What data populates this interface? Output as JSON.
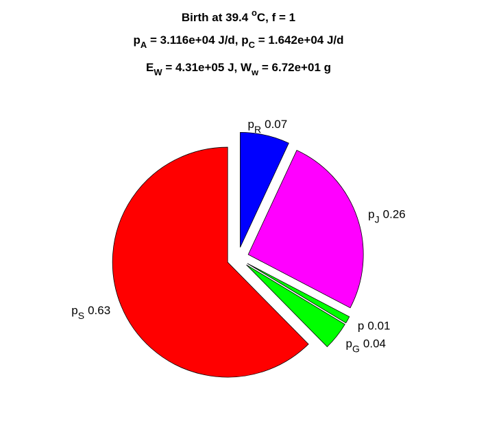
{
  "chart_data": {
    "type": "pie",
    "title_lines": [
      [
        {
          "text": "Birth at 39.4 "
        },
        {
          "sup": "o"
        },
        {
          "text": "C, f = 1"
        }
      ],
      [
        {
          "text": "p"
        },
        {
          "sub": "A"
        },
        {
          "text": " = 3.116e+04 J/d, p"
        },
        {
          "sub": "C"
        },
        {
          "text": " = 1.642e+04 J/d"
        }
      ],
      [
        {
          "text": "E"
        },
        {
          "sub": "W"
        },
        {
          "text": " = 4.31e+05 J, W"
        },
        {
          "sub": "w"
        },
        {
          "text": " = 6.72e+01 g"
        }
      ]
    ],
    "labels": [
      {
        "text": "p",
        "sub": "R"
      },
      {
        "text": "p",
        "sub": "J"
      },
      {
        "text": "p"
      },
      {
        "text": "p",
        "sub": "G"
      },
      {
        "text": "p",
        "sub": "S"
      }
    ],
    "values": [
      0.07,
      0.26,
      0.01,
      0.04,
      0.63
    ],
    "colors": [
      "#0000ff",
      "#ff00ff",
      "#00ff00",
      "#00ff00",
      "#ff0000"
    ],
    "explode": true
  }
}
